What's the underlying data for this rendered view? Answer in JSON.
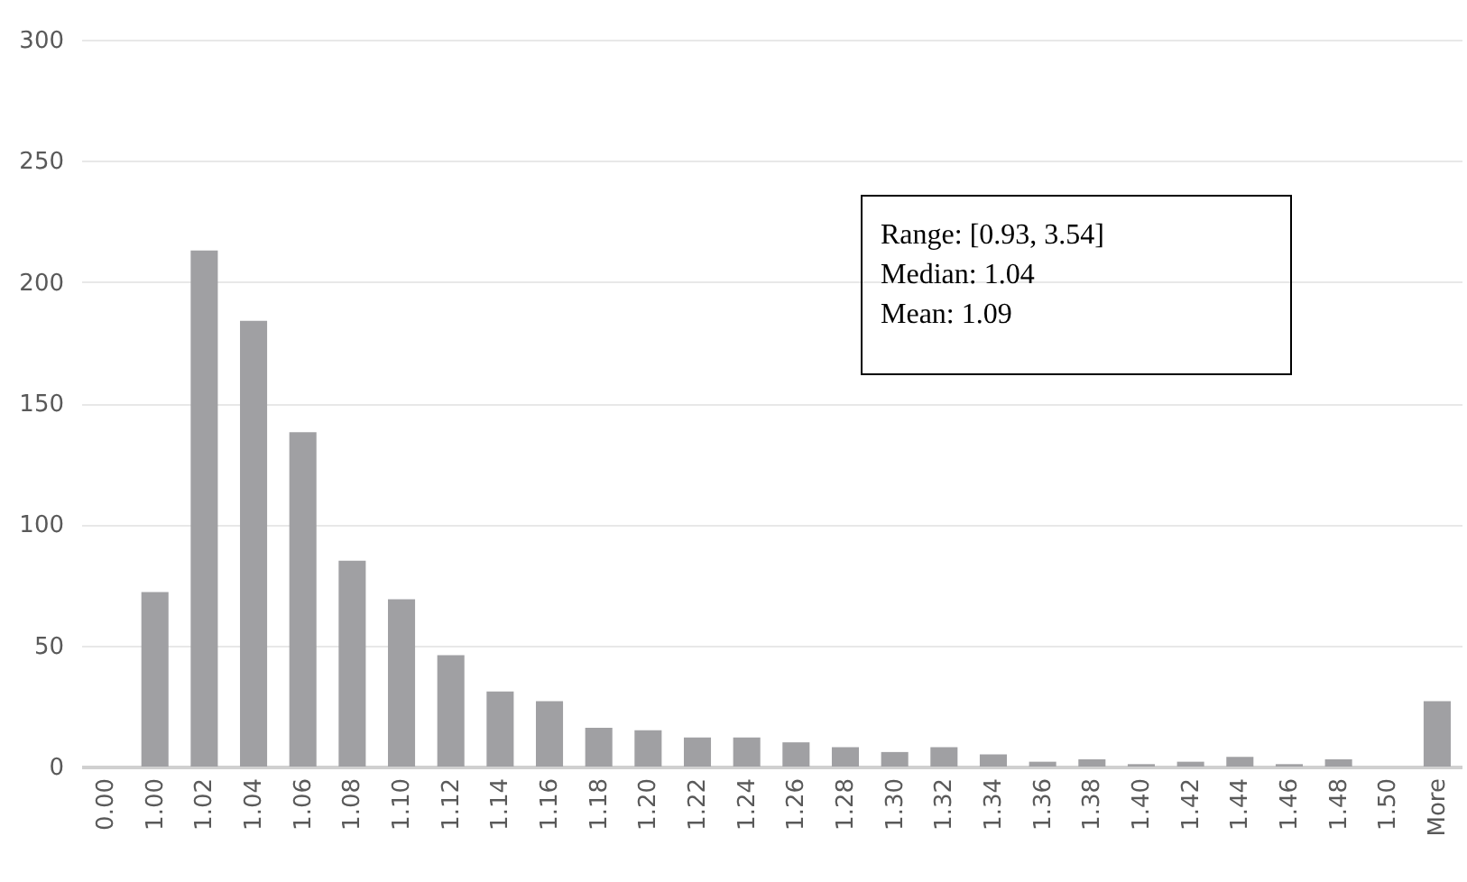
{
  "chart_data": {
    "type": "bar",
    "categories": [
      "0.00",
      "1.00",
      "1.02",
      "1.04",
      "1.06",
      "1.08",
      "1.10",
      "1.12",
      "1.14",
      "1.16",
      "1.18",
      "1.20",
      "1.22",
      "1.24",
      "1.26",
      "1.28",
      "1.30",
      "1.32",
      "1.34",
      "1.36",
      "1.38",
      "1.40",
      "1.42",
      "1.44",
      "1.46",
      "1.48",
      "1.50",
      "More"
    ],
    "values": [
      0,
      72,
      213,
      184,
      138,
      85,
      69,
      46,
      31,
      27,
      16,
      15,
      12,
      12,
      10,
      8,
      6,
      8,
      5,
      2,
      3,
      1,
      2,
      4,
      1,
      3,
      0,
      27
    ],
    "color": "#a0a0a3",
    "ylim": [
      0,
      300
    ],
    "yticks": [
      0,
      50,
      100,
      150,
      200,
      250,
      300
    ],
    "grid": "y",
    "annotations": [
      "Range: [0.93, 3.54]",
      "Median: 1.04",
      "Mean: 1.09"
    ]
  }
}
